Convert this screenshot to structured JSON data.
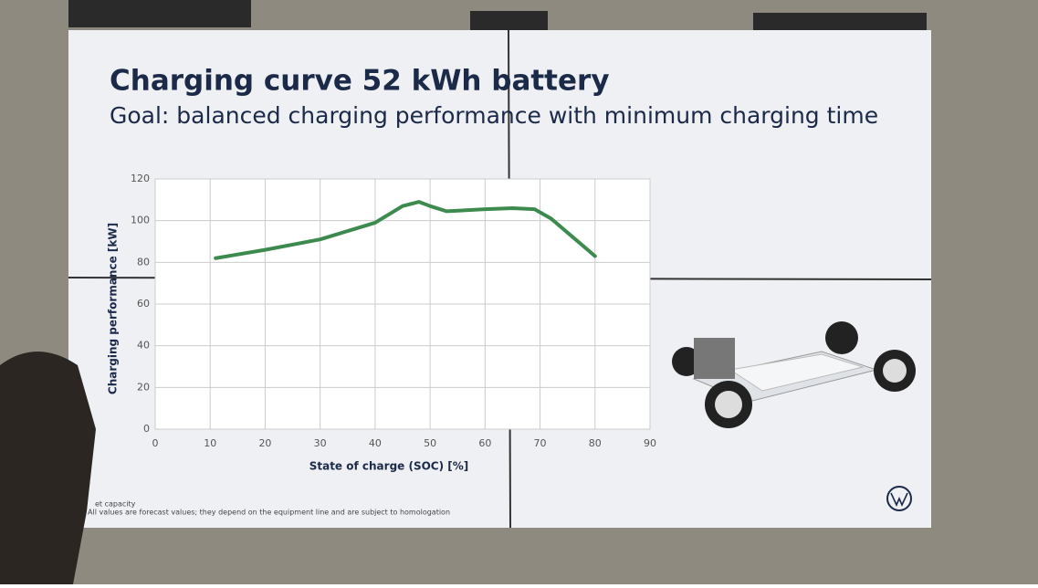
{
  "chart_data": {
    "type": "line",
    "title": "Charging curve 52 kWh battery",
    "subtitle": "Goal: balanced charging performance with minimum charging time",
    "x_label": "State of charge (SOC) [%]",
    "y_label": "Charging performance [kW]",
    "x": [
      11,
      20,
      30,
      40,
      45,
      48,
      50,
      53,
      60,
      65,
      69,
      72,
      76,
      80
    ],
    "values": [
      82,
      86,
      91,
      99,
      107,
      109,
      107,
      104.5,
      105.5,
      106,
      105.5,
      101,
      92,
      83
    ],
    "color": "#3d8a4e",
    "xlim": [
      0,
      90
    ],
    "xticks": [
      0,
      10,
      20,
      30,
      40,
      50,
      60,
      70,
      80,
      90
    ],
    "ylim": [
      0,
      120
    ],
    "yticks": [
      0,
      20,
      40,
      60,
      80,
      100,
      120
    ],
    "grid": true,
    "footnotes": [
      "et capacity",
      "All values are forecast values; they depend on the equipment line and are subject to homologation"
    ]
  }
}
